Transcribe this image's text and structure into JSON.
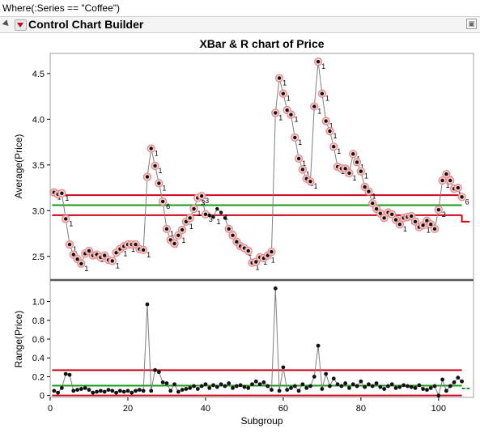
{
  "filter_text": "Where(:Series == \"Coffee\")",
  "header": {
    "title": "Control Chart Builder"
  },
  "colors": {
    "limit": "#d0021b",
    "center": "#1a9a1a",
    "series": "#7f7f7f",
    "point": "#111111",
    "flag_ring": "#e88a8a"
  },
  "chart_data": [
    {
      "type": "line",
      "title": "XBar & R chart of Price",
      "ylabel": "Average(Price)",
      "xlabel": "",
      "xlim": [
        0,
        109
      ],
      "ylim": [
        2.25,
        4.72
      ],
      "y_ticks": [
        2.5,
        3.0,
        3.5,
        4.0,
        4.5
      ],
      "y_tick_labels": [
        "2.5",
        "3.0",
        "3.5",
        "4.0",
        "4.5"
      ],
      "ucl": 3.17,
      "center": 3.06,
      "lcl": 2.95,
      "limits_end_x": 106,
      "limits_stub": [
        [
          106,
          2.95
        ],
        [
          106,
          2.88
        ],
        [
          108,
          2.88
        ]
      ],
      "x": [
        1,
        2,
        3,
        4,
        5,
        6,
        7,
        8,
        9,
        10,
        11,
        12,
        13,
        14,
        15,
        16,
        17,
        18,
        19,
        20,
        21,
        22,
        23,
        24,
        25,
        26,
        27,
        28,
        29,
        30,
        31,
        32,
        33,
        34,
        35,
        36,
        37,
        38,
        39,
        40,
        41,
        42,
        43,
        44,
        45,
        46,
        47,
        48,
        49,
        50,
        51,
        52,
        53,
        54,
        55,
        56,
        57,
        58,
        59,
        60,
        61,
        62,
        63,
        64,
        65,
        66,
        67,
        68,
        69,
        70,
        71,
        72,
        73,
        74,
        75,
        76,
        77,
        78,
        79,
        80,
        81,
        82,
        83,
        84,
        85,
        86,
        87,
        88,
        89,
        90,
        91,
        92,
        93,
        94,
        95,
        96,
        97,
        98,
        99,
        100,
        101,
        102,
        103,
        104,
        105,
        106
      ],
      "values": [
        3.2,
        3.18,
        3.19,
        2.91,
        2.63,
        2.52,
        2.47,
        2.42,
        2.53,
        2.56,
        2.51,
        2.52,
        2.49,
        2.51,
        2.46,
        2.45,
        2.54,
        2.58,
        2.61,
        2.63,
        2.63,
        2.63,
        2.58,
        2.57,
        3.37,
        3.68,
        3.49,
        3.3,
        3.1,
        2.8,
        2.68,
        2.64,
        2.73,
        2.79,
        2.88,
        2.92,
        3.02,
        3.14,
        3.16,
        2.96,
        2.95,
        2.93,
        3.02,
        2.98,
        2.92,
        2.8,
        2.73,
        2.66,
        2.61,
        2.59,
        2.56,
        2.43,
        2.44,
        2.49,
        2.48,
        2.51,
        2.55,
        4.07,
        4.45,
        4.28,
        4.1,
        4.05,
        3.8,
        3.57,
        3.45,
        3.35,
        3.32,
        4.14,
        4.63,
        4.28,
        3.98,
        3.87,
        3.7,
        3.48,
        3.46,
        3.46,
        3.41,
        3.62,
        3.53,
        3.43,
        3.26,
        3.21,
        3.08,
        3.02,
        2.97,
        2.92,
        2.98,
        2.96,
        2.9,
        2.85,
        2.92,
        2.93,
        2.94,
        2.88,
        2.82,
        2.84,
        2.89,
        2.85,
        2.8,
        3.01,
        3.33,
        3.4,
        3.33,
        3.24,
        3.25,
        3.15
      ],
      "flag_labels": [
        {
          "x": 1,
          "label": "1"
        },
        {
          "x": 3,
          "label": "1"
        },
        {
          "x": 4,
          "label": "1"
        },
        {
          "x": 5,
          "label": "1"
        },
        {
          "x": 6,
          "label": "1"
        },
        {
          "x": 7,
          "label": "1"
        },
        {
          "x": 8,
          "label": "1"
        },
        {
          "x": 10,
          "label": "1"
        },
        {
          "x": 12,
          "label": "1"
        },
        {
          "x": 14,
          "label": "1"
        },
        {
          "x": 16,
          "label": "1"
        },
        {
          "x": 18,
          "label": "1"
        },
        {
          "x": 20,
          "label": "1"
        },
        {
          "x": 22,
          "label": "1"
        },
        {
          "x": 24,
          "label": "1"
        },
        {
          "x": 26,
          "label": "1"
        },
        {
          "x": 27,
          "label": "1"
        },
        {
          "x": 28,
          "label": "1"
        },
        {
          "x": 29,
          "label": "6"
        },
        {
          "x": 30,
          "label": "1"
        },
        {
          "x": 31,
          "label": "1"
        },
        {
          "x": 33,
          "label": "1"
        },
        {
          "x": 35,
          "label": "1"
        },
        {
          "x": 37,
          "label": "1"
        },
        {
          "x": 38,
          "label": "3"
        },
        {
          "x": 39,
          "label": "3"
        },
        {
          "x": 40,
          "label": "3"
        },
        {
          "x": 42,
          "label": "1"
        },
        {
          "x": 44,
          "label": "1"
        },
        {
          "x": 46,
          "label": "1"
        },
        {
          "x": 48,
          "label": "1"
        },
        {
          "x": 50,
          "label": "1"
        },
        {
          "x": 52,
          "label": "1"
        },
        {
          "x": 54,
          "label": "1"
        },
        {
          "x": 56,
          "label": "1"
        },
        {
          "x": 58,
          "label": "1"
        },
        {
          "x": 59,
          "label": "1"
        },
        {
          "x": 60,
          "label": "1"
        },
        {
          "x": 61,
          "label": "1"
        },
        {
          "x": 62,
          "label": "1"
        },
        {
          "x": 63,
          "label": "1"
        },
        {
          "x": 64,
          "label": "1"
        },
        {
          "x": 65,
          "label": "1"
        },
        {
          "x": 66,
          "label": "1"
        },
        {
          "x": 67,
          "label": "1"
        },
        {
          "x": 68,
          "label": "1"
        },
        {
          "x": 69,
          "label": "1"
        },
        {
          "x": 70,
          "label": "1"
        },
        {
          "x": 71,
          "label": "1"
        },
        {
          "x": 72,
          "label": "1"
        },
        {
          "x": 73,
          "label": "1"
        },
        {
          "x": 74,
          "label": "1"
        },
        {
          "x": 75,
          "label": "1"
        },
        {
          "x": 77,
          "label": "1"
        },
        {
          "x": 78,
          "label": "1"
        },
        {
          "x": 79,
          "label": "1"
        },
        {
          "x": 80,
          "label": "1"
        },
        {
          "x": 81,
          "label": "1"
        },
        {
          "x": 82,
          "label": "1"
        },
        {
          "x": 83,
          "label": "1"
        },
        {
          "x": 85,
          "label": "1"
        },
        {
          "x": 87,
          "label": "1"
        },
        {
          "x": 88,
          "label": "5"
        },
        {
          "x": 89,
          "label": "1"
        },
        {
          "x": 90,
          "label": "1"
        },
        {
          "x": 92,
          "label": "5"
        },
        {
          "x": 93,
          "label": "5"
        },
        {
          "x": 94,
          "label": "5"
        },
        {
          "x": 96,
          "label": "1"
        },
        {
          "x": 98,
          "label": "1"
        },
        {
          "x": 100,
          "label": "2"
        },
        {
          "x": 101,
          "label": "1"
        },
        {
          "x": 102,
          "label": "1"
        },
        {
          "x": 104,
          "label": "1"
        },
        {
          "x": 106,
          "label": "6"
        }
      ],
      "unflagged_x": [
        41,
        42,
        43,
        44,
        45
      ]
    },
    {
      "type": "line",
      "title": "",
      "ylabel": "Range(Price)",
      "xlabel": "Subgroup",
      "xlim": [
        0,
        109
      ],
      "ylim": [
        -0.02,
        1.22
      ],
      "y_ticks": [
        0,
        0.2,
        0.4,
        0.6,
        0.8,
        1.0
      ],
      "y_tick_labels": [
        "0",
        "0.2",
        "0.4",
        "0.6",
        "0.8",
        "1.0"
      ],
      "x_ticks": [
        0,
        20,
        40,
        60,
        80,
        100
      ],
      "x_tick_labels": [
        "0",
        "20",
        "40",
        "60",
        "80",
        "100"
      ],
      "ucl": 0.27,
      "center": 0.105,
      "lcl": 0.0,
      "limits_end_x": 106,
      "limits_stub": [
        [
          106,
          0.075
        ],
        [
          108,
          0.075
        ]
      ],
      "x": [
        1,
        2,
        3,
        4,
        5,
        6,
        7,
        8,
        9,
        10,
        11,
        12,
        13,
        14,
        15,
        16,
        17,
        18,
        19,
        20,
        21,
        22,
        23,
        24,
        25,
        26,
        27,
        28,
        29,
        30,
        31,
        32,
        33,
        34,
        35,
        36,
        37,
        38,
        39,
        40,
        41,
        42,
        43,
        44,
        45,
        46,
        47,
        48,
        49,
        50,
        51,
        52,
        53,
        54,
        55,
        56,
        57,
        58,
        59,
        60,
        61,
        62,
        63,
        64,
        65,
        66,
        67,
        68,
        69,
        70,
        71,
        72,
        73,
        74,
        75,
        76,
        77,
        78,
        79,
        80,
        81,
        82,
        83,
        84,
        85,
        86,
        87,
        88,
        89,
        90,
        91,
        92,
        93,
        94,
        95,
        96,
        97,
        98,
        99,
        100,
        101,
        102,
        103,
        104,
        105,
        106
      ],
      "values": [
        0.05,
        0.03,
        0.08,
        0.23,
        0.22,
        0.05,
        0.06,
        0.07,
        0.08,
        0.06,
        0.03,
        0.04,
        0.05,
        0.04,
        0.06,
        0.05,
        0.03,
        0.05,
        0.04,
        0.05,
        0.03,
        0.05,
        0.06,
        0.05,
        0.97,
        0.05,
        0.27,
        0.25,
        0.14,
        0.13,
        0.05,
        0.12,
        0.04,
        0.06,
        0.07,
        0.08,
        0.1,
        0.07,
        0.1,
        0.12,
        0.08,
        0.11,
        0.09,
        0.12,
        0.1,
        0.13,
        0.08,
        0.1,
        0.11,
        0.09,
        0.08,
        0.12,
        0.15,
        0.12,
        0.14,
        0.1,
        0.06,
        1.14,
        0.05,
        0.3,
        0.06,
        0.08,
        0.1,
        0.05,
        0.12,
        0.08,
        0.1,
        0.2,
        0.53,
        0.07,
        0.23,
        0.1,
        0.18,
        0.12,
        0.1,
        0.13,
        0.08,
        0.12,
        0.1,
        0.15,
        0.09,
        0.12,
        0.1,
        0.13,
        0.09,
        0.07,
        0.1,
        0.12,
        0.08,
        0.09,
        0.11,
        0.1,
        0.09,
        0.08,
        0.11,
        0.07,
        0.06,
        0.08,
        0.1,
        0.0,
        0.17,
        0.05,
        0.1,
        0.14,
        0.19,
        0.15
      ]
    }
  ]
}
